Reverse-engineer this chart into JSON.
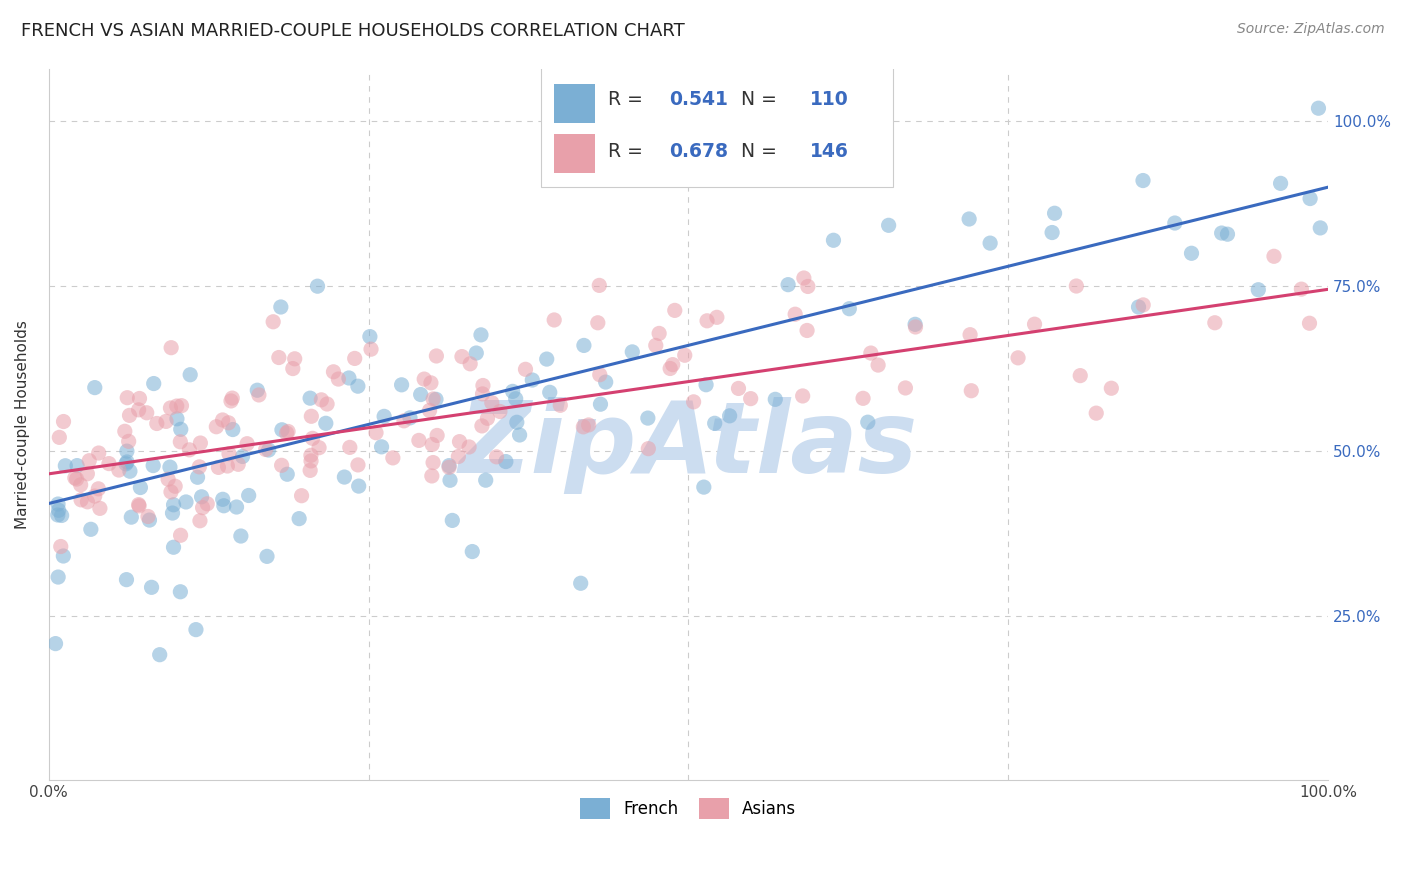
{
  "title": "FRENCH VS ASIAN MARRIED-COUPLE HOUSEHOLDS CORRELATION CHART",
  "source": "Source: ZipAtlas.com",
  "ylabel": "Married-couple Households",
  "french_R": 0.541,
  "french_N": 110,
  "asian_R": 0.678,
  "asian_N": 146,
  "french_color": "#7bafd4",
  "asian_color": "#e8a0aa",
  "french_line_color": "#3a6abf",
  "asian_line_color": "#d44070",
  "watermark": "ZipAtlas",
  "watermark_color": "#ccddf0",
  "legend_value_color": "#3a6abf",
  "legend_text_color": "#333333",
  "right_tick_color": "#3a6abf",
  "title_color": "#222222",
  "source_color": "#888888",
  "grid_color": "#cccccc",
  "background_color": "#ffffff",
  "french_line_intercept": 0.42,
  "french_line_slope": 0.48,
  "asian_line_intercept": 0.465,
  "asian_line_slope": 0.28
}
